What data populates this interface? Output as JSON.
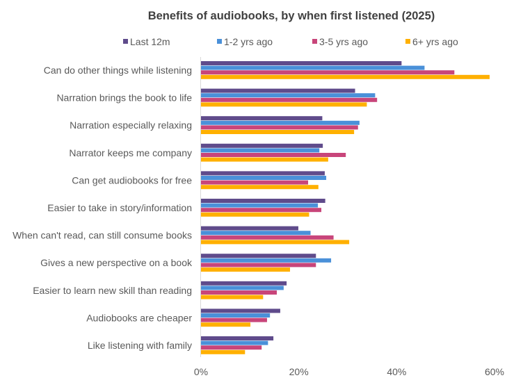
{
  "chart_data": {
    "type": "bar",
    "orientation": "horizontal",
    "title": "Benefits of audiobooks, by when first listened (2025)",
    "xlabel": "",
    "ylabel": "",
    "xlim": [
      0,
      60
    ],
    "x_ticks": [
      "0%",
      "20%",
      "40%",
      "60%"
    ],
    "x_tick_values": [
      0,
      20,
      40,
      60
    ],
    "grid": false,
    "legend_position": "top",
    "categories": [
      "Can do other things while listening",
      "Narration brings the book to life",
      "Narration especially relaxing",
      "Narrator keeps me company",
      "Can get audiobooks for free",
      "Easier to take in story/information",
      "When can't read, can still consume books",
      "Gives a new perspective on a book",
      "Easier to learn new skill than reading",
      "Audiobooks are cheaper",
      "Like listening with family"
    ],
    "series": [
      {
        "name": "Last 12m",
        "color": "#5F4B8B",
        "values": [
          41,
          31.5,
          24.8,
          24.9,
          25.3,
          25.4,
          19.9,
          23.5,
          17.5,
          16.2,
          14.8
        ]
      },
      {
        "name": "1-2 yrs ago",
        "color": "#4A90D9",
        "values": [
          45.7,
          35.6,
          32.4,
          24.2,
          25.6,
          23.9,
          22.4,
          26.6,
          16.9,
          14.1,
          13.7
        ]
      },
      {
        "name": "3-5 yrs ago",
        "color": "#C8457A",
        "values": [
          51.8,
          36.0,
          32.1,
          29.6,
          21.9,
          24.6,
          27.1,
          23.5,
          15.5,
          13.5,
          12.4
        ]
      },
      {
        "name": "6+ yrs ago",
        "color": "#FFB000",
        "values": [
          59.0,
          33.9,
          31.3,
          26.0,
          24.0,
          22.1,
          30.3,
          18.2,
          12.7,
          10.1,
          9.0
        ]
      }
    ]
  }
}
